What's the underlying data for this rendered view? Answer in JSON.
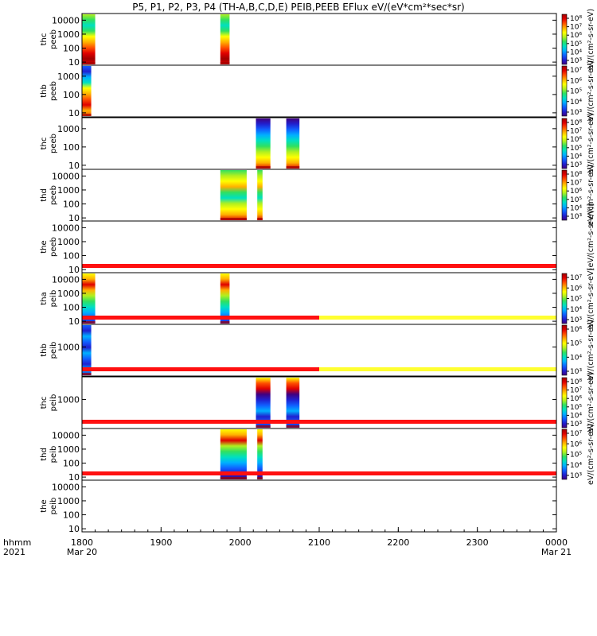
{
  "title": "P5, P1, P2, P3, P4 (TH-A,B,C,D,E) PEIB,PEEB EFlux eV/(eV*cm²*sec*sr)",
  "chart_data": {
    "type": "heatmap",
    "x_axis": {
      "range": [
        "2021-03-20 18:00",
        "2021-03-21 00:00"
      ],
      "ticks": [
        "1800",
        "1900",
        "2000",
        "2100",
        "2200",
        "2300",
        "0000"
      ],
      "first_tick_date": "Mar 20",
      "last_tick_date": "Mar 21",
      "row_label_1": "hhmm",
      "row_label_2": "2021"
    },
    "panels": [
      {
        "label": [
          "thc",
          "peeb"
        ],
        "y_ticks": [
          "10000",
          "1000",
          "100",
          "10"
        ],
        "y_tick_values": [
          10000,
          1000,
          100,
          10
        ],
        "y_range": [
          6,
          30000
        ],
        "colorbar": {
          "ticks": [
            "10⁸",
            "10⁷",
            "10⁶",
            "10⁵",
            "10⁴",
            "10³"
          ],
          "unit": "eV/(cm²-s-sr-eV)"
        },
        "data_blocks": [
          {
            "start": "18:00",
            "end": "18:10",
            "profile": "high"
          },
          {
            "start": "19:45",
            "end": "19:52",
            "profile": "high"
          }
        ],
        "quality_bar": null
      },
      {
        "label": [
          "thb",
          "peeb"
        ],
        "y_ticks": [
          "1000",
          "100",
          "10"
        ],
        "y_tick_values": [
          1000,
          100,
          10
        ],
        "y_range": [
          6,
          4000
        ],
        "colorbar": {
          "ticks": [
            "10⁷",
            "10⁶",
            "10⁵",
            "10⁴",
            "10³"
          ],
          "unit": "eV/(cm²-s-sr-eV)"
        },
        "data_blocks": [
          {
            "start": "18:00",
            "end": "18:07",
            "profile": "stripes"
          }
        ],
        "quality_bar": null
      },
      {
        "label": [
          "thc",
          "peeb"
        ],
        "y_ticks": [
          "1000",
          "100",
          "10"
        ],
        "y_tick_values": [
          1000,
          100,
          10
        ],
        "y_range": [
          6,
          4000
        ],
        "colorbar": {
          "ticks": [
            "10⁸",
            "10⁷",
            "10⁶",
            "10⁵",
            "10⁴",
            "10³"
          ],
          "unit": "eV/(cm²-s-sr-eV)"
        },
        "data_blocks": [
          {
            "start": "20:12",
            "end": "20:23",
            "profile": "bluetop"
          },
          {
            "start": "20:35",
            "end": "20:45",
            "profile": "bluetop"
          }
        ],
        "quality_bar": null
      },
      {
        "label": [
          "thd",
          "peeb"
        ],
        "y_ticks": [
          "10000",
          "1000",
          "100",
          "10"
        ],
        "y_tick_values": [
          10000,
          1000,
          100,
          10
        ],
        "y_range": [
          6,
          30000
        ],
        "colorbar": {
          "ticks": [
            "10⁸",
            "10⁷",
            "10⁶",
            "10⁵",
            "10⁴",
            "10³"
          ],
          "unit": "eV/(cm²-s-sr-eV)"
        },
        "data_blocks": [
          {
            "start": "19:45",
            "end": "20:05",
            "profile": "mixed"
          },
          {
            "start": "20:13",
            "end": "20:17",
            "profile": "mixed"
          }
        ],
        "quality_bar": null
      },
      {
        "label": [
          "the",
          "peeb"
        ],
        "y_ticks": [
          "10000",
          "1000",
          "100",
          "10"
        ],
        "y_tick_values": [
          10000,
          1000,
          100,
          10
        ],
        "y_range": [
          6,
          30000
        ],
        "colorbar": null,
        "data_blocks": [],
        "quality_bar": {
          "red_until": "24:00",
          "yellow_until": null
        }
      },
      {
        "label": [
          "tha",
          "peib"
        ],
        "y_ticks": [
          "10000",
          "1000",
          "100",
          "10"
        ],
        "y_tick_values": [
          10000,
          1000,
          100,
          10
        ],
        "y_range": [
          6,
          30000
        ],
        "colorbar": {
          "ticks": [
            "10⁷",
            "10⁶",
            "10⁵",
            "10⁴",
            "10³"
          ],
          "unit": "eV/(cm²-s-sr-eV)"
        },
        "data_blocks": [
          {
            "start": "18:00",
            "end": "18:10",
            "profile": "ion"
          },
          {
            "start": "19:45",
            "end": "19:52",
            "profile": "ion"
          }
        ],
        "quality_bar": {
          "red_until": "21:00",
          "yellow_until": "24:00"
        }
      },
      {
        "label": [
          "thb",
          "peib"
        ],
        "y_ticks": [
          "1000"
        ],
        "y_tick_values": [
          1000
        ],
        "y_range": [
          100,
          6000
        ],
        "colorbar": {
          "ticks": [
            "10⁶",
            "10⁵",
            "10⁴",
            "10³"
          ],
          "unit": "eV/(cm²-s-sr-eV)"
        },
        "data_blocks": [
          {
            "start": "18:00",
            "end": "18:07",
            "profile": "bluewave"
          }
        ],
        "quality_bar": {
          "red_until": "21:00",
          "yellow_until": "24:00"
        }
      },
      {
        "label": [
          "thc",
          "peib"
        ],
        "y_ticks": [
          "1000"
        ],
        "y_tick_values": [
          1000
        ],
        "y_range": [
          100,
          6000
        ],
        "colorbar": {
          "ticks": [
            "10⁸",
            "10⁷",
            "10⁶",
            "10⁵",
            "10⁴",
            "10³"
          ],
          "unit": "eV/(cm²-s-sr-eV)"
        },
        "data_blocks": [
          {
            "start": "20:12",
            "end": "20:23",
            "profile": "ionhigh"
          },
          {
            "start": "20:35",
            "end": "20:45",
            "profile": "ionhigh"
          }
        ],
        "quality_bar": {
          "red_until": "24:00",
          "yellow_until": null
        }
      },
      {
        "label": [
          "thd",
          "peib"
        ],
        "y_ticks": [
          "10000",
          "1000",
          "100",
          "10"
        ],
        "y_tick_values": [
          10000,
          1000,
          100,
          10
        ],
        "y_range": [
          6,
          30000
        ],
        "colorbar": {
          "ticks": [
            "10⁷",
            "10⁶",
            "10⁵",
            "10⁴",
            "10³"
          ],
          "unit": "eV/(cm²-s-sr-eV)"
        },
        "data_blocks": [
          {
            "start": "19:45",
            "end": "20:05",
            "profile": "ionmix"
          },
          {
            "start": "20:13",
            "end": "20:17",
            "profile": "ionmix"
          }
        ],
        "quality_bar": {
          "red_until": "24:00",
          "yellow_until": null
        }
      },
      {
        "label": [
          "the",
          "peib"
        ],
        "y_ticks": [
          "10000",
          "1000",
          "100",
          "10"
        ],
        "y_tick_values": [
          10000,
          1000,
          100,
          10
        ],
        "y_range": [
          6,
          30000
        ],
        "colorbar": null,
        "data_blocks": [],
        "quality_bar": null
      }
    ],
    "side_label_peeb": "[eV/(cm²-s-sr-eV)]",
    "colormap": [
      "#400080",
      "#2020d0",
      "#1060ff",
      "#00b0ff",
      "#00e0c0",
      "#30e060",
      "#b0f020",
      "#ffff00",
      "#ffb000",
      "#ff5000",
      "#e00000",
      "#a00000"
    ],
    "quality_colors": {
      "red": "#ff1010",
      "yellow": "#ffff30"
    }
  }
}
